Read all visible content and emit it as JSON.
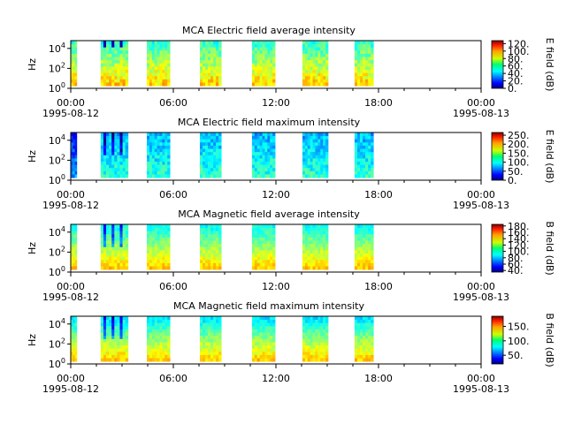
{
  "figure": {
    "shared_x": {
      "ticks": [
        "00:00",
        "06:00",
        "12:00",
        "18:00",
        "00:00"
      ],
      "date_start": "1995-08-12",
      "date_end": "1995-08-13",
      "xlim": [
        "1995-08-12 00:00",
        "1995-08-13 00:00"
      ]
    }
  },
  "chart_data": [
    {
      "type": "heatmap",
      "title": "MCA  Electric field average intensity",
      "ylabel": "Hz",
      "y_ticks": [
        "10^4",
        "10^2",
        "10^0"
      ],
      "y_scale": "log",
      "ylim": [
        1,
        60000
      ],
      "colorbar": {
        "label": "E field (dB)",
        "ticks": [
          "120.",
          "100.",
          "80.",
          "60.",
          "40.",
          "20.",
          "0."
        ],
        "range": [
          0,
          128
        ]
      },
      "data_intervals_hours": [
        [
          0.0,
          0.35
        ],
        [
          1.75,
          3.35
        ],
        [
          4.45,
          5.8
        ],
        [
          7.55,
          8.8
        ],
        [
          10.6,
          11.95
        ],
        [
          13.55,
          15.05
        ],
        [
          16.6,
          17.7
        ]
      ],
      "colormap": "jet"
    },
    {
      "type": "heatmap",
      "title": "MCA  Electric field maximum intensity",
      "ylabel": "Hz",
      "y_ticks": [
        "10^4",
        "10^2",
        "10^0"
      ],
      "y_scale": "log",
      "ylim": [
        1,
        60000
      ],
      "colorbar": {
        "label": "E field (dB)",
        "ticks": [
          "250.",
          "200.",
          "150.",
          "100.",
          "50.",
          "0."
        ],
        "range": [
          0,
          265
        ]
      },
      "data_intervals_hours": [
        [
          0.0,
          0.35
        ],
        [
          1.75,
          3.35
        ],
        [
          4.45,
          5.8
        ],
        [
          7.55,
          8.8
        ],
        [
          10.6,
          11.95
        ],
        [
          13.55,
          15.05
        ],
        [
          16.6,
          17.7
        ]
      ],
      "colormap": "jet"
    },
    {
      "type": "heatmap",
      "title": "MCA  Magnetic field average intensity",
      "ylabel": "Hz",
      "y_ticks": [
        "10^4",
        "10^2",
        "10^0"
      ],
      "y_scale": "log",
      "ylim": [
        1,
        60000
      ],
      "colorbar": {
        "label": "B field (dB)",
        "ticks": [
          "180.",
          "160.",
          "140.",
          "120.",
          "100.",
          "80.",
          "60.",
          "40."
        ],
        "range": [
          35,
          185
        ]
      },
      "data_intervals_hours": [
        [
          0.0,
          0.35
        ],
        [
          1.75,
          3.35
        ],
        [
          4.45,
          5.8
        ],
        [
          7.55,
          8.8
        ],
        [
          10.6,
          11.95
        ],
        [
          13.55,
          15.05
        ],
        [
          16.6,
          17.7
        ]
      ],
      "colormap": "jet"
    },
    {
      "type": "heatmap",
      "title": "MCA  Magnetic field maximum intensity",
      "ylabel": "Hz",
      "y_ticks": [
        "10^4",
        "10^2",
        "10^0"
      ],
      "y_scale": "log",
      "ylim": [
        1,
        60000
      ],
      "colorbar": {
        "label": "B field (dB)",
        "ticks": [
          "150.",
          "100.",
          "50."
        ],
        "range": [
          20,
          185
        ]
      },
      "data_intervals_hours": [
        [
          0.0,
          0.35
        ],
        [
          1.75,
          3.35
        ],
        [
          4.45,
          5.8
        ],
        [
          7.55,
          8.8
        ],
        [
          10.6,
          11.95
        ],
        [
          13.55,
          15.05
        ],
        [
          16.6,
          17.7
        ]
      ],
      "colormap": "jet"
    }
  ]
}
